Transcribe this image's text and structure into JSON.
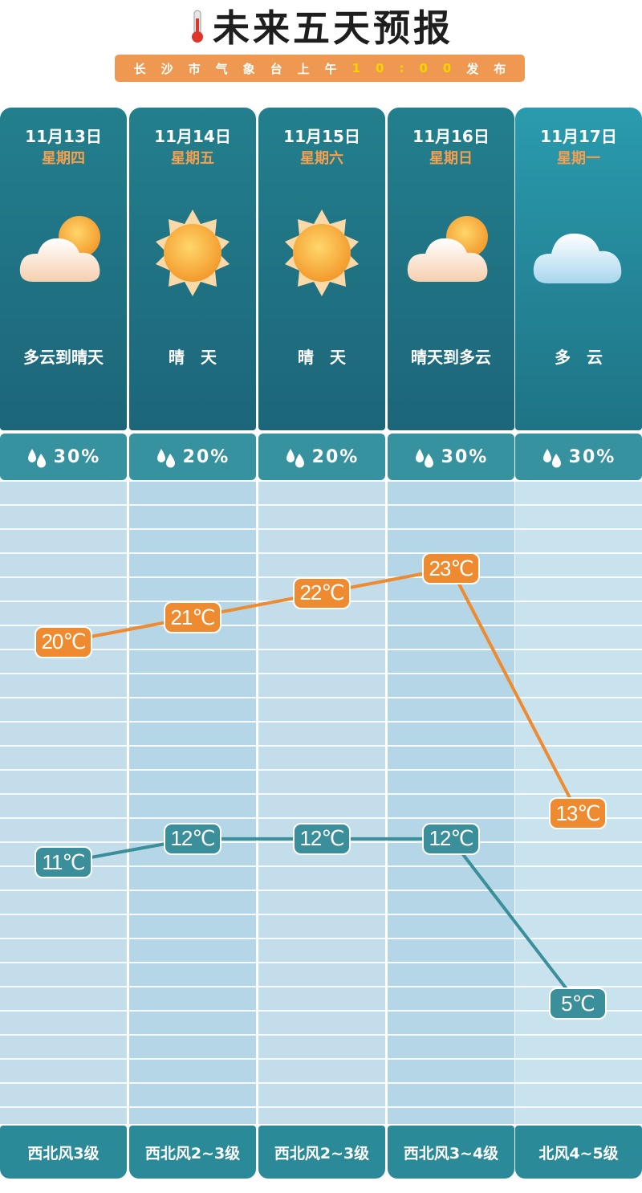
{
  "header": {
    "title": "未来五天预报",
    "subtitle_prefix": "长沙市气象台上午",
    "subtitle_time": "10:00",
    "subtitle_suffix": "发布"
  },
  "days": [
    {
      "date": "11月13日",
      "weekday": "星期四",
      "condition": "多云到晴天",
      "icon": "partly-cloudy-icon",
      "rain": "30%",
      "wind": "西北风3级",
      "high": "20℃",
      "low": "11℃"
    },
    {
      "date": "11月14日",
      "weekday": "星期五",
      "condition": "晴　天",
      "icon": "sun-icon",
      "rain": "20%",
      "wind": "西北风2~3级",
      "high": "21℃",
      "low": "12℃"
    },
    {
      "date": "11月15日",
      "weekday": "星期六",
      "condition": "晴　天",
      "icon": "sun-icon",
      "rain": "20%",
      "wind": "西北风2~3级",
      "high": "22℃",
      "low": "12℃"
    },
    {
      "date": "11月16日",
      "weekday": "星期日",
      "condition": "晴天到多云",
      "icon": "partly-cloudy-icon",
      "rain": "30%",
      "wind": "西北风3~4级",
      "high": "23℃",
      "low": "12℃"
    },
    {
      "date": "11月17日",
      "weekday": "星期一",
      "condition": "多　云",
      "icon": "cloud-icon",
      "rain": "30%",
      "wind": "北风4~5级",
      "high": "13℃",
      "low": "5℃"
    }
  ],
  "chart_data": {
    "type": "line",
    "x": [
      "11月13日",
      "11月14日",
      "11月15日",
      "11月16日",
      "11月17日"
    ],
    "series": [
      {
        "values": [
          20,
          21,
          22,
          23,
          13
        ]
      },
      {
        "values": [
          11,
          12,
          12,
          12,
          5
        ]
      }
    ]
  },
  "colors": {
    "high_line": "#ee8a2f",
    "low_line": "#3b8f9a",
    "accent_time": "#ffd400",
    "weekday": "#f5a04f"
  }
}
